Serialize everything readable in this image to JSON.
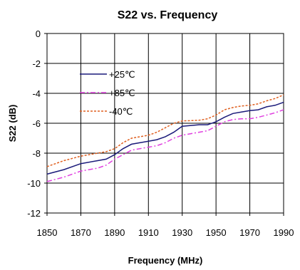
{
  "chart_data": {
    "type": "line",
    "title": "S22 vs. Frequency",
    "xlabel": "Frequency (MHz)",
    "ylabel": "S22 (dB)",
    "xlim": [
      1850,
      1990
    ],
    "ylim": [
      -12,
      0
    ],
    "xticks": [
      1850,
      1870,
      1890,
      1910,
      1930,
      1950,
      1970,
      1990
    ],
    "yticks": [
      0,
      -2,
      -4,
      -6,
      -8,
      -10,
      -12
    ],
    "grid": true,
    "legend_position": "upper-left",
    "series": [
      {
        "name": "+25℃",
        "color": "#1a1a7a",
        "style": "solid",
        "x": [
          1850,
          1860,
          1870,
          1880,
          1885,
          1890,
          1895,
          1900,
          1910,
          1915,
          1920,
          1925,
          1930,
          1940,
          1945,
          1950,
          1955,
          1960,
          1965,
          1970,
          1975,
          1980,
          1985,
          1990
        ],
        "y": [
          -9.4,
          -9.1,
          -8.7,
          -8.5,
          -8.4,
          -8.1,
          -7.7,
          -7.4,
          -7.2,
          -7.1,
          -6.9,
          -6.6,
          -6.2,
          -6.1,
          -6.1,
          -5.9,
          -5.6,
          -5.35,
          -5.25,
          -5.15,
          -5.1,
          -4.9,
          -4.8,
          -4.6
        ]
      },
      {
        "name": "+85℃",
        "color": "#e040e0",
        "style": "dashdot",
        "x": [
          1850,
          1860,
          1870,
          1880,
          1885,
          1890,
          1895,
          1900,
          1910,
          1915,
          1920,
          1925,
          1930,
          1940,
          1945,
          1950,
          1955,
          1960,
          1965,
          1970,
          1975,
          1980,
          1985,
          1990
        ],
        "y": [
          -9.9,
          -9.6,
          -9.2,
          -9.0,
          -8.8,
          -8.4,
          -8.1,
          -7.8,
          -7.6,
          -7.5,
          -7.3,
          -7.0,
          -6.8,
          -6.6,
          -6.5,
          -6.2,
          -5.9,
          -5.75,
          -5.7,
          -5.7,
          -5.6,
          -5.45,
          -5.3,
          -5.1
        ]
      },
      {
        "name": "-40℃",
        "color": "#e06020",
        "style": "dotted",
        "x": [
          1850,
          1860,
          1870,
          1880,
          1885,
          1890,
          1895,
          1900,
          1910,
          1915,
          1920,
          1925,
          1930,
          1940,
          1945,
          1950,
          1955,
          1960,
          1965,
          1970,
          1975,
          1980,
          1985,
          1990
        ],
        "y": [
          -8.9,
          -8.5,
          -8.2,
          -8.0,
          -7.9,
          -7.7,
          -7.3,
          -7.0,
          -6.8,
          -6.6,
          -6.3,
          -6.0,
          -5.85,
          -5.8,
          -5.7,
          -5.45,
          -5.1,
          -4.95,
          -4.85,
          -4.8,
          -4.7,
          -4.5,
          -4.35,
          -4.1
        ]
      }
    ]
  }
}
